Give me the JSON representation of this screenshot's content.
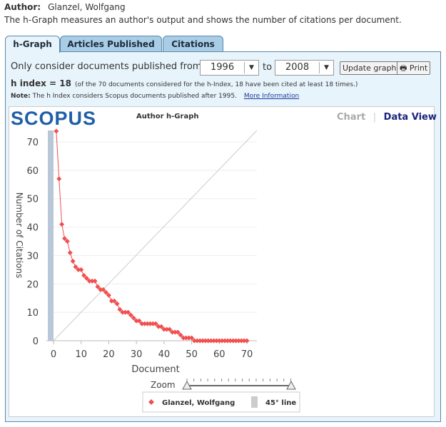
{
  "author": {
    "label": "Author:",
    "name": "Glanzel, Wolfgang"
  },
  "description": "The h-Graph measures an author's output and shows the number of citations per document.",
  "tabs": [
    {
      "label": "h-Graph",
      "active": true
    },
    {
      "label": "Articles Published"
    },
    {
      "label": "Citations"
    }
  ],
  "filter": {
    "label": "Only consider documents published from:",
    "from": "1996",
    "to_label": "to",
    "to": "2008",
    "update_button": "Update graph",
    "print_button": "Print"
  },
  "h_index": {
    "label": "h index = 18",
    "detail": "(of the 70 documents considered for the h-Index, 18 have been cited at least 18 times.)"
  },
  "note": {
    "label": "Note:",
    "text": "The h Index considers Scopus documents published after 1995.",
    "link": "More Information"
  },
  "logo": "SCOPUS",
  "graph_title": "Author h-Graph",
  "views": {
    "chart": "Chart",
    "separator": "|",
    "data": "Data View"
  },
  "zoom_label": "Zoom",
  "colors": {
    "series": "#f05050",
    "line45": "#cccccc",
    "accent": "#1f5fa6"
  },
  "chart_data": {
    "type": "line",
    "xlabel": "Document",
    "ylabel": "Number of Citations",
    "xlim": [
      0,
      70
    ],
    "ylim": [
      0,
      70
    ],
    "xticks": [
      0,
      10,
      20,
      30,
      40,
      50,
      60,
      70
    ],
    "yticks": [
      0,
      10,
      20,
      30,
      40,
      50,
      60,
      70
    ],
    "grid": true,
    "legend_position": "bottom",
    "series": [
      {
        "name": "Glanzel, Wolfgang",
        "x": [
          1,
          2,
          3,
          4,
          5,
          6,
          7,
          8,
          9,
          10,
          11,
          12,
          13,
          14,
          15,
          16,
          17,
          18,
          19,
          20,
          21,
          22,
          23,
          24,
          25,
          26,
          27,
          28,
          29,
          30,
          31,
          32,
          33,
          34,
          35,
          36,
          37,
          38,
          39,
          40,
          41,
          42,
          43,
          44,
          45,
          46,
          47,
          48,
          49,
          50,
          51,
          52,
          53,
          54,
          55,
          56,
          57,
          58,
          59,
          60,
          61,
          62,
          63,
          64,
          65,
          66,
          67,
          68,
          69,
          70
        ],
        "y": [
          74,
          57,
          41,
          36,
          35,
          31,
          28,
          26,
          25,
          25,
          23,
          22,
          21,
          21,
          21,
          19,
          18,
          18,
          17,
          16,
          14,
          14,
          13,
          11,
          10,
          10,
          10,
          9,
          8,
          7,
          7,
          6,
          6,
          6,
          6,
          6,
          6,
          5,
          5,
          4,
          4,
          4,
          3,
          3,
          3,
          2,
          1,
          1,
          1,
          1,
          0,
          0,
          0,
          0,
          0,
          0,
          0,
          0,
          0,
          0,
          0,
          0,
          0,
          0,
          0,
          0,
          0,
          0,
          0,
          0
        ]
      },
      {
        "name": "45° line",
        "x": [
          0,
          70
        ],
        "y": [
          0,
          70
        ]
      }
    ]
  }
}
